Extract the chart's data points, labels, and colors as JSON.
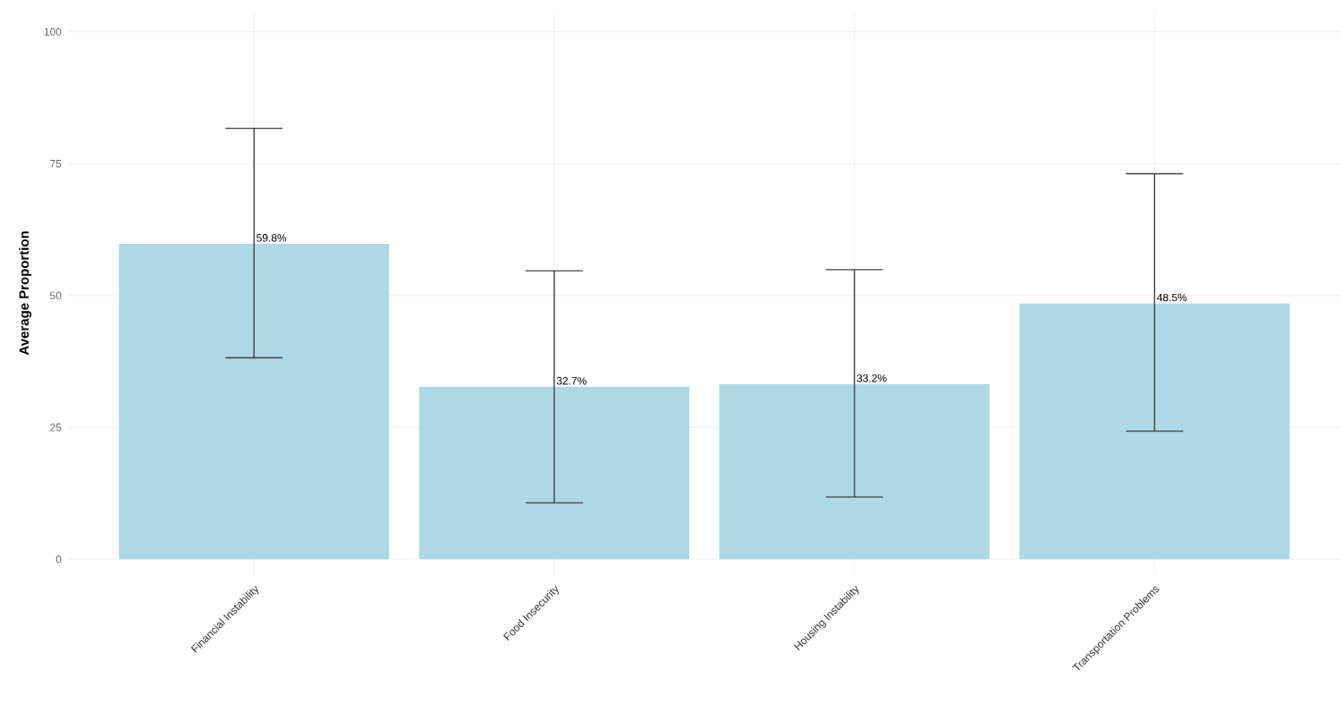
{
  "chart_data": {
    "type": "bar",
    "ylabel": "Average Proportion",
    "categories": [
      "Financial Instability",
      "Food Insecurity",
      "Housing Instability",
      "Transportation Problems"
    ],
    "values": [
      59.8,
      32.7,
      33.2,
      48.5
    ],
    "errors": [
      [
        38.2,
        81.7
      ],
      [
        10.7,
        54.7
      ],
      [
        11.8,
        54.9
      ],
      [
        24.3,
        73.1
      ]
    ],
    "value_labels": [
      "59.8%",
      "32.7%",
      "33.2%",
      "48.5%"
    ],
    "color": "#add8e6",
    "ylim": [
      -3,
      104
    ],
    "yticks": [
      0,
      25,
      50,
      75,
      100
    ],
    "grid": true
  }
}
